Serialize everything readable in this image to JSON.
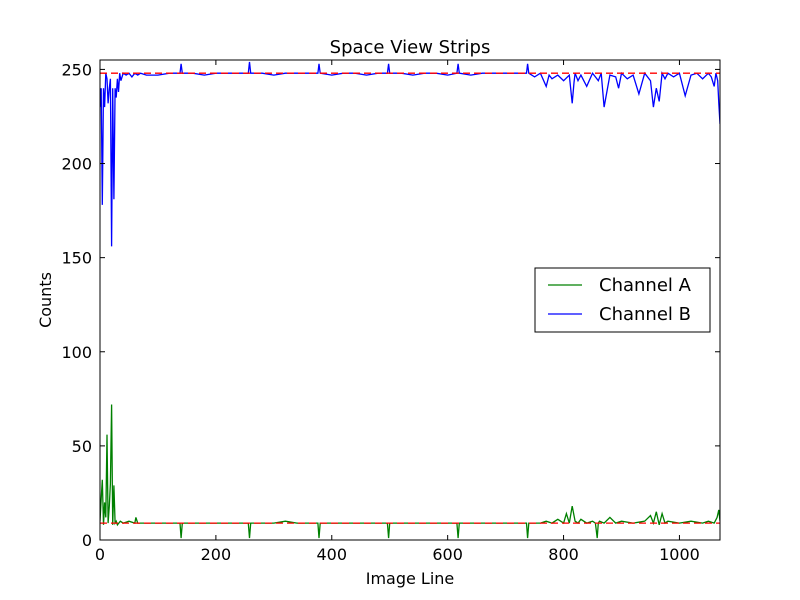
{
  "chart_data": {
    "type": "line",
    "title": "Space View Strips",
    "xlabel": "Image Line",
    "ylabel": "Counts",
    "xlim": [
      0,
      1070
    ],
    "ylim": [
      0,
      255
    ],
    "xticks": [
      0,
      200,
      400,
      600,
      800,
      1000
    ],
    "yticks": [
      0,
      50,
      100,
      150,
      200,
      250
    ],
    "xtick_labels": [
      "0",
      "200",
      "400",
      "600",
      "800",
      "1000"
    ],
    "ytick_labels": [
      "0",
      "50",
      "100",
      "150",
      "200",
      "250"
    ],
    "legend_position": "center-right",
    "grid": false,
    "series": [
      {
        "name": "Channel A",
        "color": "#008000",
        "line_style": "solid",
        "x": [
          0,
          2,
          4,
          6,
          8,
          10,
          12,
          14,
          16,
          18,
          20,
          22,
          24,
          26,
          28,
          30,
          35,
          40,
          50,
          60,
          62,
          65,
          80,
          100,
          120,
          138,
          140,
          142,
          160,
          180,
          200,
          220,
          240,
          256,
          258,
          260,
          280,
          300,
          320,
          340,
          360,
          376,
          378,
          380,
          400,
          420,
          440,
          460,
          480,
          496,
          498,
          500,
          520,
          540,
          560,
          580,
          600,
          616,
          618,
          620,
          640,
          660,
          680,
          700,
          720,
          736,
          738,
          740,
          760,
          770,
          780,
          790,
          800,
          805,
          810,
          815,
          820,
          825,
          830,
          840,
          850,
          855,
          858,
          860,
          862,
          870,
          880,
          890,
          900,
          920,
          940,
          950,
          955,
          960,
          965,
          970,
          975,
          980,
          1000,
          1020,
          1040,
          1050,
          1060,
          1065,
          1068,
          1070
        ],
        "values": [
          10,
          22,
          32,
          8,
          20,
          12,
          56,
          9,
          18,
          30,
          72,
          8,
          29,
          9,
          10,
          8,
          10,
          9,
          10,
          9,
          12,
          9,
          9,
          9,
          9,
          9,
          1,
          9,
          9,
          9,
          9,
          9,
          9,
          9,
          1,
          9,
          9,
          9,
          10,
          9,
          9,
          9,
          1,
          9,
          9,
          9,
          9,
          9,
          9,
          9,
          1,
          9,
          9,
          9,
          9,
          9,
          9,
          9,
          1,
          9,
          9,
          9,
          9,
          9,
          9,
          9,
          1,
          9,
          9,
          10,
          9,
          11,
          9,
          14,
          9,
          18,
          10,
          9,
          11,
          9,
          10,
          9,
          1,
          9,
          10,
          9,
          12,
          9,
          10,
          9,
          10,
          13,
          9,
          15,
          8,
          14,
          9,
          10,
          9,
          10,
          9,
          10,
          9,
          12,
          16,
          10
        ]
      },
      {
        "name": "Channel B",
        "color": "#0000ff",
        "line_style": "solid",
        "x": [
          0,
          2,
          4,
          6,
          8,
          10,
          12,
          14,
          16,
          18,
          20,
          22,
          24,
          26,
          28,
          30,
          32,
          34,
          36,
          40,
          45,
          50,
          55,
          60,
          65,
          70,
          80,
          100,
          120,
          138,
          140,
          142,
          160,
          180,
          200,
          220,
          240,
          256,
          258,
          260,
          280,
          300,
          320,
          340,
          360,
          376,
          378,
          380,
          400,
          420,
          440,
          460,
          480,
          496,
          498,
          500,
          520,
          540,
          560,
          580,
          600,
          616,
          618,
          620,
          640,
          660,
          680,
          700,
          720,
          736,
          738,
          740,
          750,
          760,
          770,
          775,
          780,
          790,
          800,
          810,
          815,
          818,
          820,
          825,
          830,
          840,
          850,
          855,
          860,
          865,
          870,
          880,
          890,
          895,
          900,
          910,
          920,
          930,
          940,
          950,
          955,
          960,
          965,
          970,
          975,
          980,
          990,
          1000,
          1010,
          1020,
          1030,
          1040,
          1050,
          1055,
          1060,
          1063,
          1066,
          1068,
          1070
        ],
        "values": [
          230,
          240,
          178,
          240,
          230,
          248,
          245,
          232,
          240,
          245,
          156,
          240,
          181,
          240,
          235,
          245,
          238,
          248,
          244,
          248,
          247,
          248,
          246,
          248,
          247,
          248,
          247,
          247,
          248,
          248,
          253,
          248,
          248,
          247,
          248,
          248,
          248,
          248,
          254,
          248,
          248,
          247,
          248,
          248,
          248,
          248,
          253,
          248,
          247,
          248,
          248,
          247,
          248,
          248,
          253,
          248,
          248,
          247,
          248,
          248,
          247,
          248,
          253,
          248,
          247,
          248,
          248,
          248,
          248,
          248,
          253,
          248,
          246,
          248,
          241,
          247,
          245,
          247,
          244,
          247,
          232,
          243,
          248,
          244,
          247,
          241,
          248,
          246,
          244,
          248,
          230,
          247,
          246,
          240,
          248,
          245,
          247,
          237,
          248,
          244,
          230,
          240,
          233,
          248,
          245,
          248,
          246,
          248,
          236,
          247,
          248,
          245,
          248,
          246,
          241,
          248,
          244,
          232,
          221
        ]
      },
      {
        "name": "",
        "color": "#ff0000",
        "line_style": "dashed",
        "x": [
          0,
          1070
        ],
        "values": [
          248,
          248
        ]
      },
      {
        "name": "",
        "color": "#ff0000",
        "line_style": "dashed",
        "x": [
          0,
          1070
        ],
        "values": [
          9,
          9
        ]
      }
    ]
  }
}
